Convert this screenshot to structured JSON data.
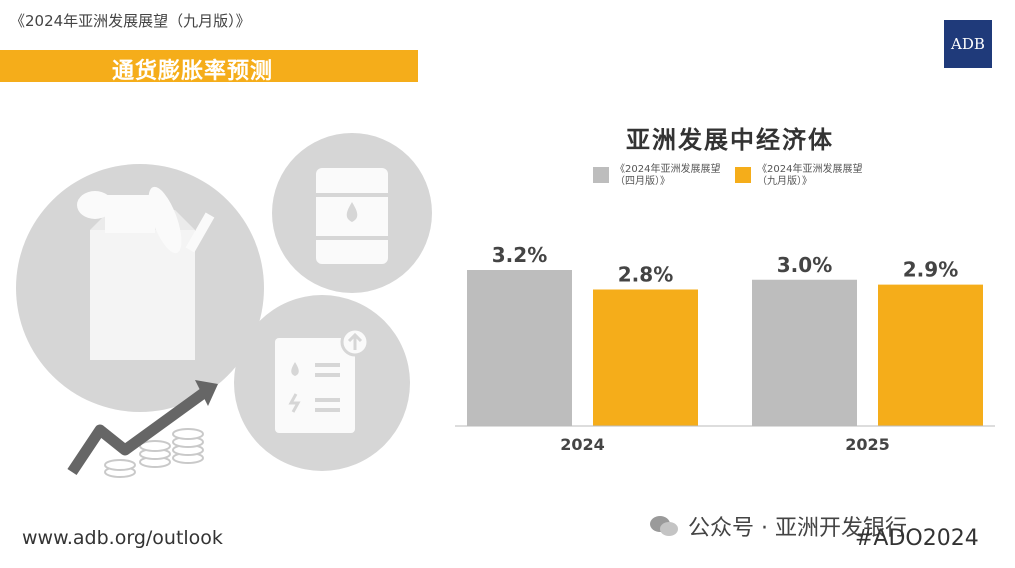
{
  "header": {
    "report_title": "《2024年亚洲发展展望（九月版）》",
    "section_title": "通货膨胀率预测",
    "logo_text": "ADB"
  },
  "chart_data": {
    "type": "bar",
    "title": "亚洲发展中经济体",
    "categories": [
      "2024",
      "2025"
    ],
    "series": [
      {
        "name": "《2024年亚洲发展展望（四月版）》",
        "values": [
          3.2,
          3.0
        ],
        "labels": [
          "3.2%",
          "3.0%"
        ],
        "color": "#bdbdbd"
      },
      {
        "name": "《2024年亚洲发展展望（九月版）》",
        "values": [
          2.8,
          2.9
        ],
        "labels": [
          "2.8%",
          "2.9%"
        ],
        "color": "#f5ad1a"
      }
    ],
    "ylim": [
      0,
      3.2
    ],
    "grid": false,
    "legend_position": "top"
  },
  "legend": {
    "item1": {
      "line1": "《2024年亚洲发展展望",
      "line2": "（四月版）》"
    },
    "item2": {
      "line1": "《2024年亚洲发展展望",
      "line2": "（九月版）》"
    }
  },
  "icons": [
    "grocery-bag-icon",
    "oil-barrel-icon",
    "utility-bill-icon",
    "rising-trend-arrow-icon",
    "coin-stack-icon"
  ],
  "footer": {
    "url": "www.adb.org/outlook",
    "hashtag": "#ADO2024",
    "wechat": "公众号 · 亚洲开发银行"
  }
}
